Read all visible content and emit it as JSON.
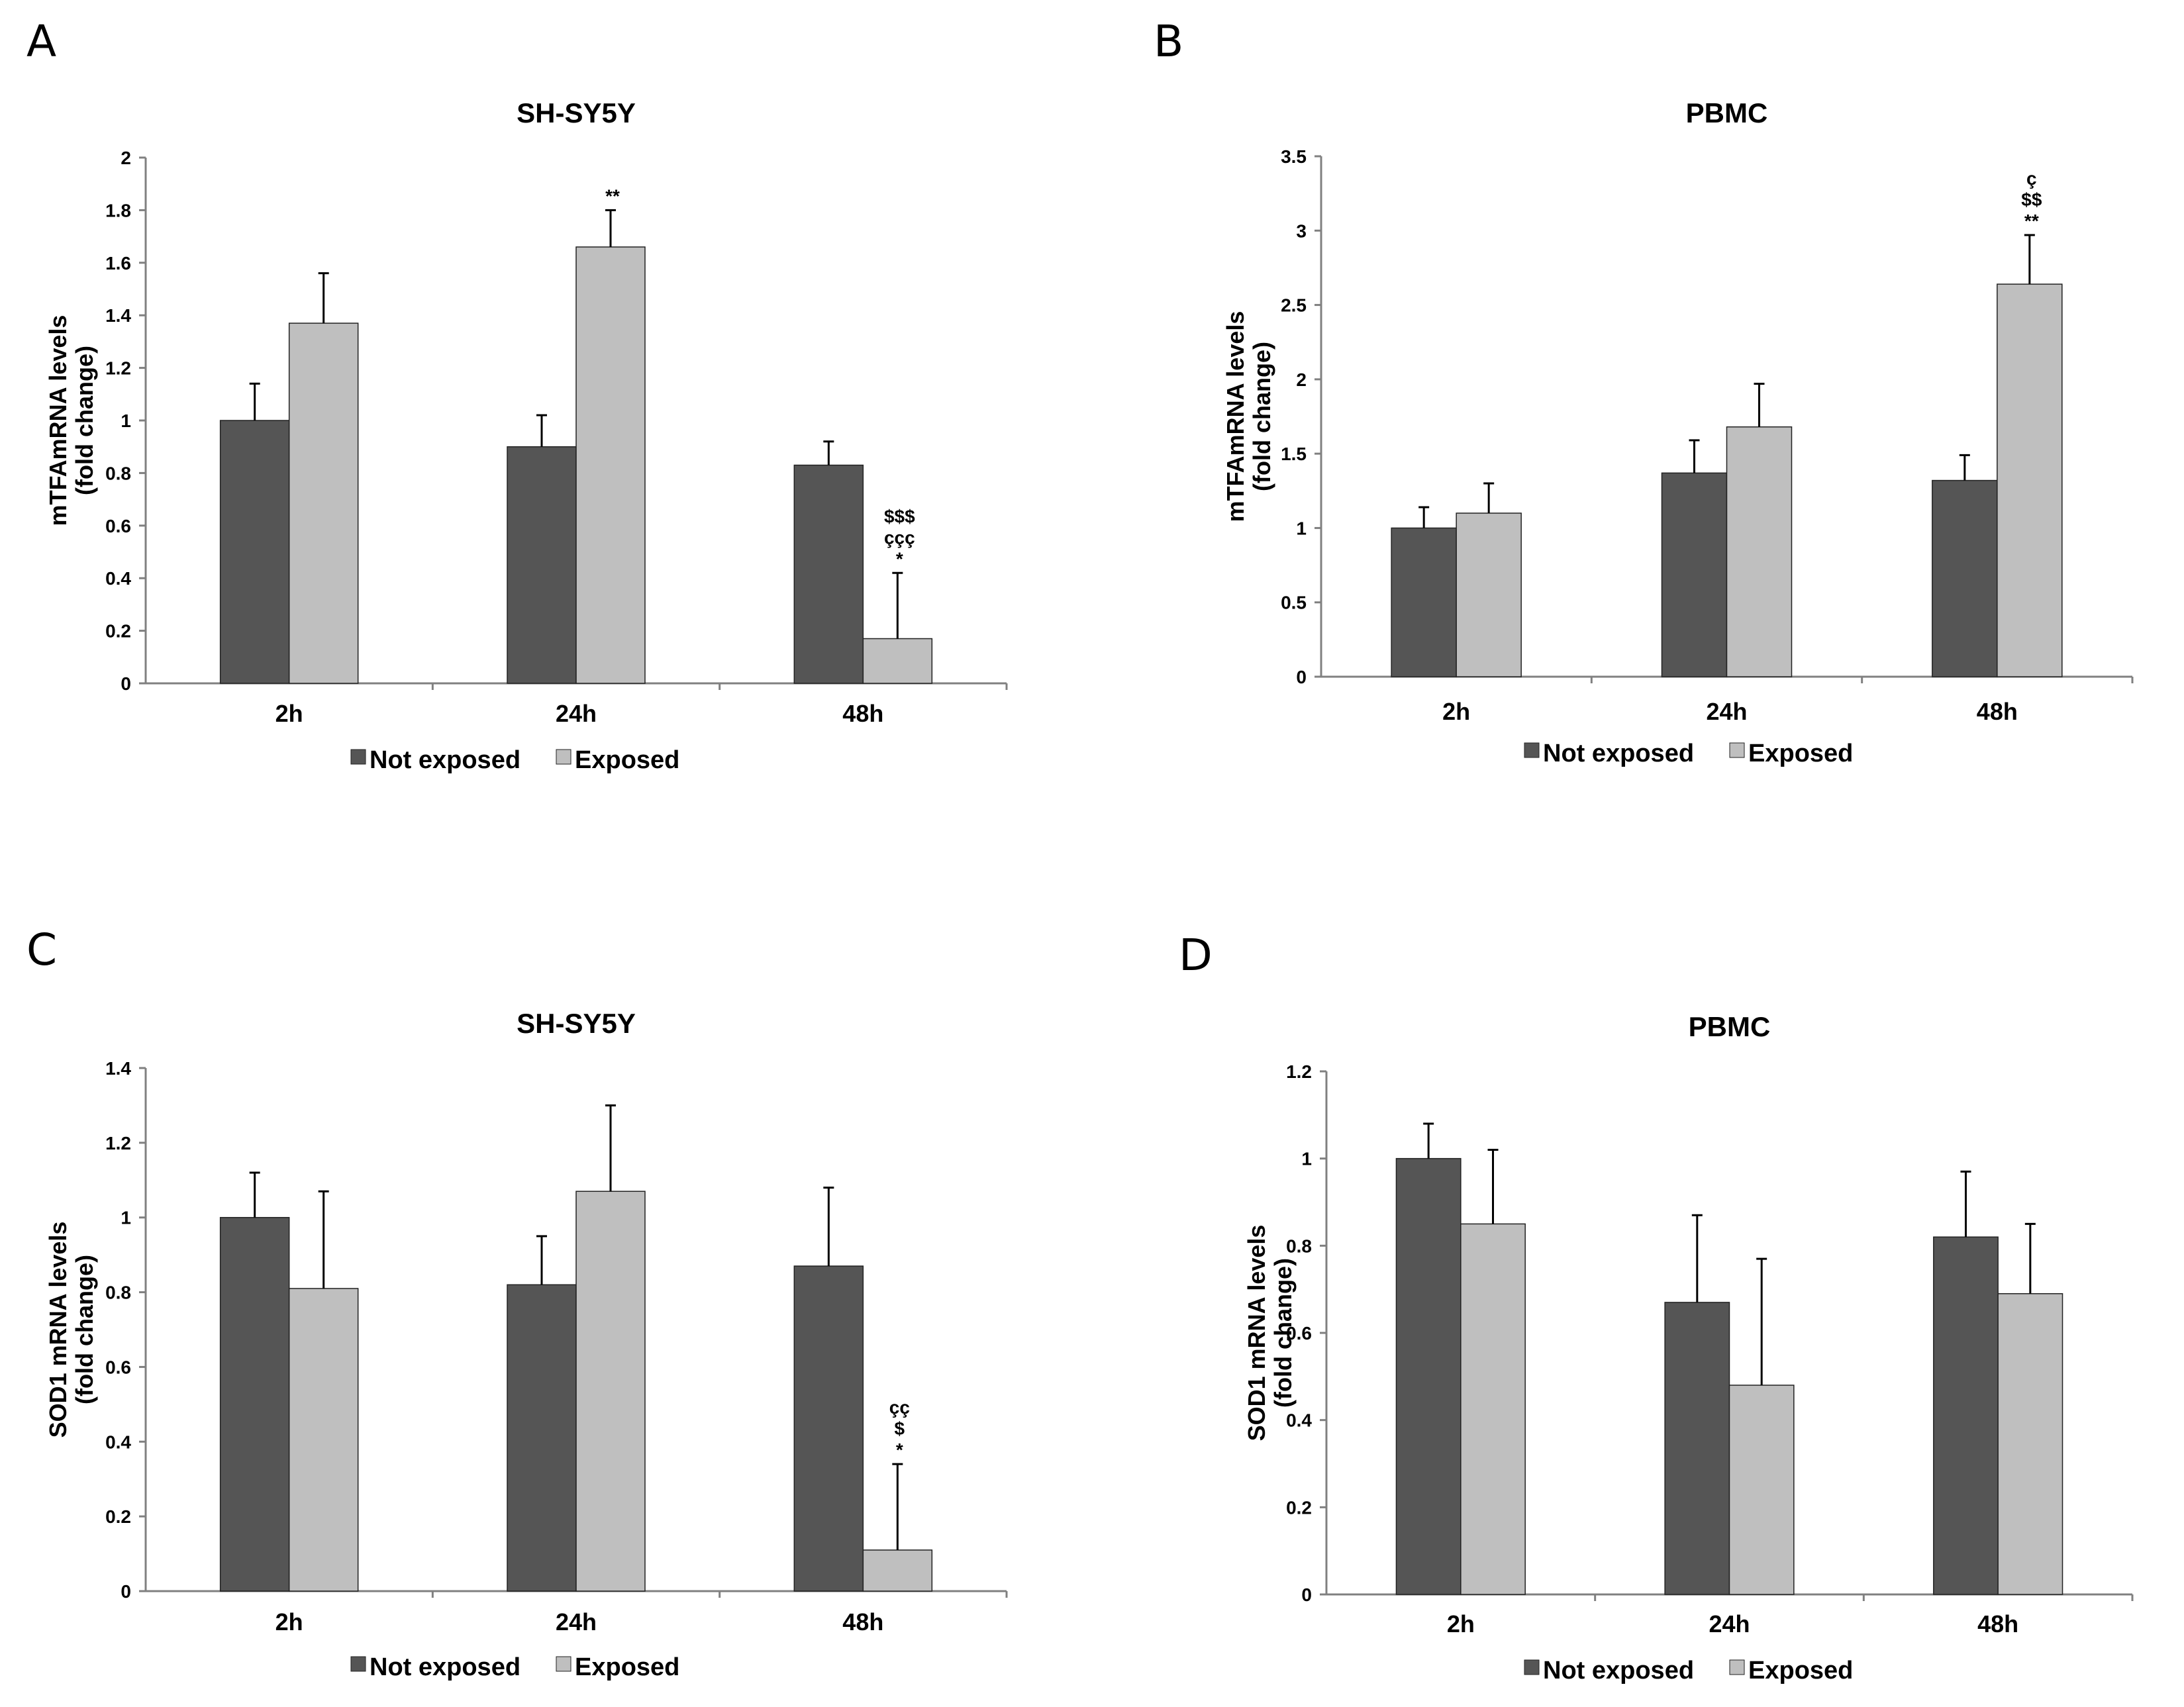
{
  "legend": {
    "not_exposed": "Not exposed",
    "exposed": "Exposed"
  },
  "colors": {
    "not_exposed": "#555555",
    "exposed": "#bfbfbf",
    "axis": "#808080",
    "error": "#000000"
  },
  "chart_data": [
    {
      "panel": "A",
      "type": "bar",
      "title": "SH-SY5Y",
      "ylabel": "mTFAmRNA levels\n(fold change)",
      "ylim": [
        0,
        2
      ],
      "yticks": [
        0,
        0.2,
        0.4,
        0.6,
        0.8,
        1,
        1.2,
        1.4,
        1.6,
        1.8,
        2
      ],
      "categories": [
        "2h",
        "24h",
        "48h"
      ],
      "series": [
        {
          "name": "Not exposed",
          "values": [
            1.0,
            0.9,
            0.83
          ],
          "errors": [
            0.14,
            0.12,
            0.09
          ]
        },
        {
          "name": "Exposed",
          "values": [
            1.37,
            1.66,
            0.17
          ],
          "errors": [
            0.19,
            0.14,
            0.25
          ]
        }
      ],
      "annotations": [
        {
          "category": "24h",
          "series": "Exposed",
          "lines": [
            "**"
          ]
        },
        {
          "category": "48h",
          "series": "Exposed",
          "lines": [
            "$$$",
            "ççç",
            "*"
          ]
        }
      ]
    },
    {
      "panel": "B",
      "type": "bar",
      "title": "PBMC",
      "ylabel": "mTFAmRNA levels\n(fold change)",
      "ylim": [
        0,
        3.5
      ],
      "yticks": [
        0,
        0.5,
        1,
        1.5,
        2,
        2.5,
        3,
        3.5
      ],
      "categories": [
        "2h",
        "24h",
        "48h"
      ],
      "series": [
        {
          "name": "Not exposed",
          "values": [
            1.0,
            1.37,
            1.32
          ],
          "errors": [
            0.14,
            0.22,
            0.17
          ]
        },
        {
          "name": "Exposed",
          "values": [
            1.1,
            1.68,
            2.64
          ],
          "errors": [
            0.2,
            0.29,
            0.33
          ]
        }
      ],
      "annotations": [
        {
          "category": "48h",
          "series": "Exposed",
          "lines": [
            "ç",
            "$$",
            "**"
          ]
        }
      ]
    },
    {
      "panel": "C",
      "type": "bar",
      "title": "SH-SY5Y",
      "ylabel": "SOD1 mRNA levels\n(fold change)",
      "ylim": [
        0,
        1.4
      ],
      "yticks": [
        0,
        0.2,
        0.4,
        0.6,
        0.8,
        1,
        1.2,
        1.4
      ],
      "categories": [
        "2h",
        "24h",
        "48h"
      ],
      "series": [
        {
          "name": "Not exposed",
          "values": [
            1.0,
            0.82,
            0.87
          ],
          "errors": [
            0.12,
            0.13,
            0.21
          ]
        },
        {
          "name": "Exposed",
          "values": [
            0.81,
            1.07,
            0.11
          ],
          "errors": [
            0.26,
            0.23,
            0.23
          ]
        }
      ],
      "annotations": [
        {
          "category": "48h",
          "series": "Exposed",
          "lines": [
            "çç",
            "$",
            "*"
          ]
        }
      ]
    },
    {
      "panel": "D",
      "type": "bar",
      "title": "PBMC",
      "ylabel": "SOD1 mRNA levels\n(fold change)",
      "ylim": [
        0,
        1.2
      ],
      "yticks": [
        0,
        0.2,
        0.4,
        0.6,
        0.8,
        1,
        1.2
      ],
      "categories": [
        "2h",
        "24h",
        "48h"
      ],
      "series": [
        {
          "name": "Not exposed",
          "values": [
            1.0,
            0.67,
            0.82
          ],
          "errors": [
            0.08,
            0.2,
            0.15
          ]
        },
        {
          "name": "Exposed",
          "values": [
            0.85,
            0.48,
            0.69
          ],
          "errors": [
            0.17,
            0.29,
            0.16
          ]
        }
      ],
      "annotations": []
    }
  ]
}
